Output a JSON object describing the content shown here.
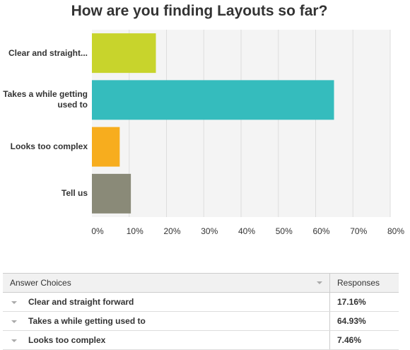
{
  "chart_data": {
    "type": "bar",
    "orientation": "horizontal",
    "title": "How are you finding Layouts so far?",
    "categories": [
      "Clear and straight...",
      "Takes a while getting used to",
      "Looks too complex",
      "Tell us"
    ],
    "values": [
      17.16,
      64.93,
      7.46,
      10.45
    ],
    "colors": [
      "#c8d42c",
      "#35bcbd",
      "#f7ad1e",
      "#8a8a78"
    ],
    "xlim": [
      0,
      80
    ],
    "ticks": [
      "0%",
      "10%",
      "20%",
      "30%",
      "40%",
      "50%",
      "60%",
      "70%",
      "80%"
    ],
    "grid": true,
    "legend": "none"
  },
  "table": {
    "headers": {
      "choice": "Answer Choices",
      "responses": "Responses"
    },
    "rows": [
      {
        "choice": "Clear and straight forward",
        "response": "17.16%"
      },
      {
        "choice": "Takes a while getting used to",
        "response": "64.93%"
      },
      {
        "choice": "Looks too complex",
        "response": "7.46%"
      }
    ]
  }
}
